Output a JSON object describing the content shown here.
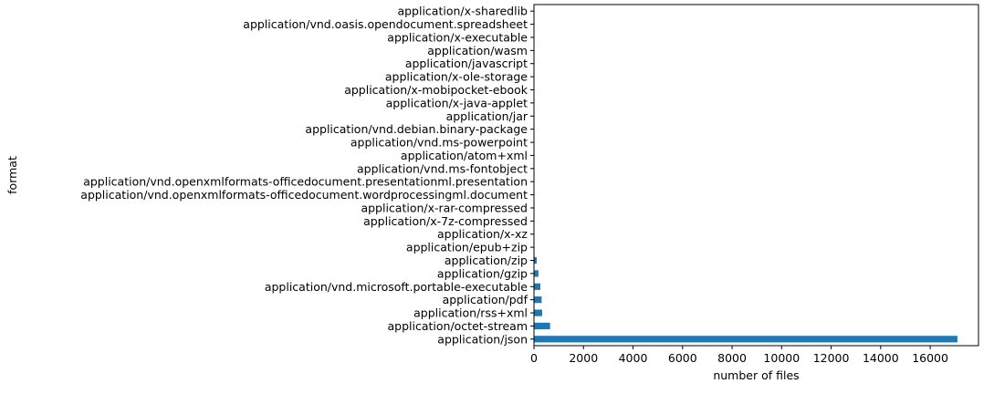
{
  "chart_data": {
    "type": "bar",
    "orientation": "horizontal",
    "xlabel": "number of files",
    "ylabel": "format",
    "xlim": [
      0,
      17950
    ],
    "xticks": [
      0,
      2000,
      4000,
      6000,
      8000,
      10000,
      12000,
      14000,
      16000
    ],
    "grid": false,
    "bar_color": "#1f77b4",
    "categories": [
      "application/json",
      "application/octet-stream",
      "application/rss+xml",
      "application/pdf",
      "application/vnd.microsoft.portable-executable",
      "application/gzip",
      "application/zip",
      "application/epub+zip",
      "application/x-xz",
      "application/x-7z-compressed",
      "application/x-rar-compressed",
      "application/vnd.openxmlformats-officedocument.wordprocessingml.document",
      "application/vnd.openxmlformats-officedocument.presentationml.presentation",
      "application/vnd.ms-fontobject",
      "application/atom+xml",
      "application/vnd.ms-powerpoint",
      "application/vnd.debian.binary-package",
      "application/jar",
      "application/x-java-applet",
      "application/x-mobipocket-ebook",
      "application/x-ole-storage",
      "application/javascript",
      "application/wasm",
      "application/x-executable",
      "application/vnd.oasis.opendocument.spreadsheet",
      "application/x-sharedlib"
    ],
    "values": [
      17100,
      650,
      330,
      310,
      260,
      180,
      110,
      20,
      15,
      12,
      10,
      8,
      7,
      6,
      5,
      4,
      4,
      3,
      3,
      2,
      2,
      2,
      1,
      1,
      1,
      1
    ]
  }
}
